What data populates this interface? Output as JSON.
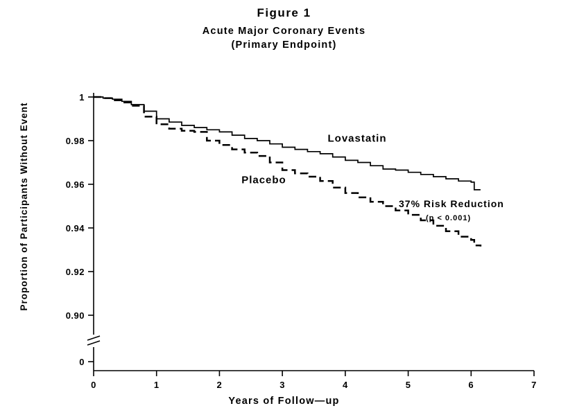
{
  "page": {
    "background": "#ffffff"
  },
  "chart_data": {
    "type": "line",
    "chart_kind": "kaplan-meier-step",
    "title": "Figure 1",
    "subtitle": "Acute Major Coronary Events",
    "subtitle2": "(Primary Endpoint)",
    "xlabel": "Years of Follow—up",
    "ylabel": "Proportion of Participants Without Event",
    "xlim": [
      0,
      7
    ],
    "xticks": [
      0,
      1,
      2,
      3,
      4,
      5,
      6,
      7
    ],
    "yticks": [
      {
        "value": 1.0,
        "label": "1"
      },
      {
        "value": 0.98,
        "label": "0.98"
      },
      {
        "value": 0.96,
        "label": "0.96"
      },
      {
        "value": 0.94,
        "label": "0.94"
      },
      {
        "value": 0.92,
        "label": "0.92"
      },
      {
        "value": 0.9,
        "label": "0.90"
      },
      {
        "value": 0,
        "label": "0"
      }
    ],
    "ylim_main": [
      0.9,
      1.0
    ],
    "axis_break": true,
    "grid": false,
    "line_color": "#000000",
    "series": [
      {
        "name": "Lovastatin",
        "style": "solid",
        "x": [
          0,
          0.15,
          0.3,
          0.45,
          0.6,
          0.8,
          1.0,
          1.2,
          1.4,
          1.6,
          1.8,
          2.0,
          2.2,
          2.4,
          2.6,
          2.8,
          3.0,
          3.2,
          3.4,
          3.6,
          3.8,
          4.0,
          4.2,
          4.4,
          4.6,
          4.8,
          5.0,
          5.2,
          5.4,
          5.6,
          5.8,
          6.0,
          6.05,
          6.15
        ],
        "y": [
          1.0,
          0.9995,
          0.999,
          0.998,
          0.9965,
          0.9935,
          0.99,
          0.9885,
          0.987,
          0.986,
          0.985,
          0.984,
          0.9825,
          0.981,
          0.98,
          0.9785,
          0.977,
          0.976,
          0.975,
          0.974,
          0.9725,
          0.971,
          0.97,
          0.9685,
          0.967,
          0.9665,
          0.9655,
          0.9645,
          0.9635,
          0.9625,
          0.9615,
          0.961,
          0.9575,
          0.9575
        ]
      },
      {
        "name": "Placebo",
        "style": "dashed",
        "x": [
          0,
          0.15,
          0.3,
          0.45,
          0.6,
          0.8,
          1.0,
          1.2,
          1.4,
          1.6,
          1.8,
          2.0,
          2.2,
          2.4,
          2.6,
          2.8,
          3.0,
          3.2,
          3.4,
          3.6,
          3.8,
          4.0,
          4.2,
          4.4,
          4.6,
          4.8,
          5.0,
          5.2,
          5.4,
          5.6,
          5.8,
          6.0,
          6.05,
          6.15
        ],
        "y": [
          1.0,
          0.9995,
          0.9985,
          0.9975,
          0.996,
          0.991,
          0.9875,
          0.9855,
          0.9845,
          0.984,
          0.98,
          0.978,
          0.976,
          0.9745,
          0.973,
          0.97,
          0.9665,
          0.965,
          0.9635,
          0.9615,
          0.9585,
          0.956,
          0.954,
          0.952,
          0.95,
          0.948,
          0.946,
          0.9435,
          0.941,
          0.9385,
          0.936,
          0.9345,
          0.932,
          0.9315
        ]
      }
    ],
    "annotations": [
      {
        "text": "Lovastatin",
        "x": 3.72,
        "y": 0.9795,
        "size": 15,
        "weight": 700
      },
      {
        "text": "Placebo",
        "x": 2.35,
        "y": 0.9605,
        "size": 15,
        "weight": 700
      },
      {
        "text": "37% Risk Reduction",
        "x": 4.85,
        "y": 0.9495,
        "size": 14,
        "weight": 700
      },
      {
        "text": "(p < 0.001)",
        "x": 5.28,
        "y": 0.9435,
        "size": 11,
        "weight": 700
      }
    ]
  }
}
